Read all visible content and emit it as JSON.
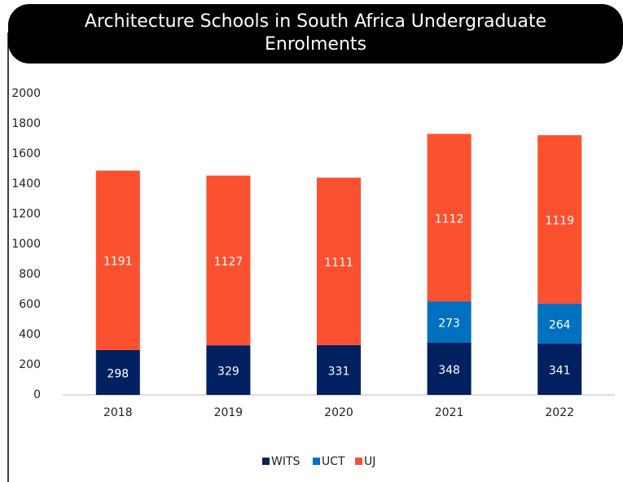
{
  "chart_data": {
    "type": "stacked_bar",
    "title": "Architecture Schools in South Africa Undergraduate Enrolments",
    "categories": [
      "2018",
      "2019",
      "2020",
      "2021",
      "2022"
    ],
    "series": [
      {
        "name": "WITS",
        "color": "#002060",
        "values": [
          298,
          329,
          331,
          348,
          341
        ]
      },
      {
        "name": "UCT",
        "color": "#0070c0",
        "values": [
          null,
          null,
          null,
          273,
          264
        ]
      },
      {
        "name": "UJ",
        "color": "#fc5130",
        "values": [
          1191,
          1127,
          1111,
          1112,
          1119
        ]
      }
    ],
    "ylim": [
      0,
      2000
    ],
    "yticks": [
      0,
      200,
      400,
      600,
      800,
      1000,
      1200,
      1400,
      1600,
      1800,
      2000
    ],
    "grid": false,
    "legend": "bottom"
  }
}
